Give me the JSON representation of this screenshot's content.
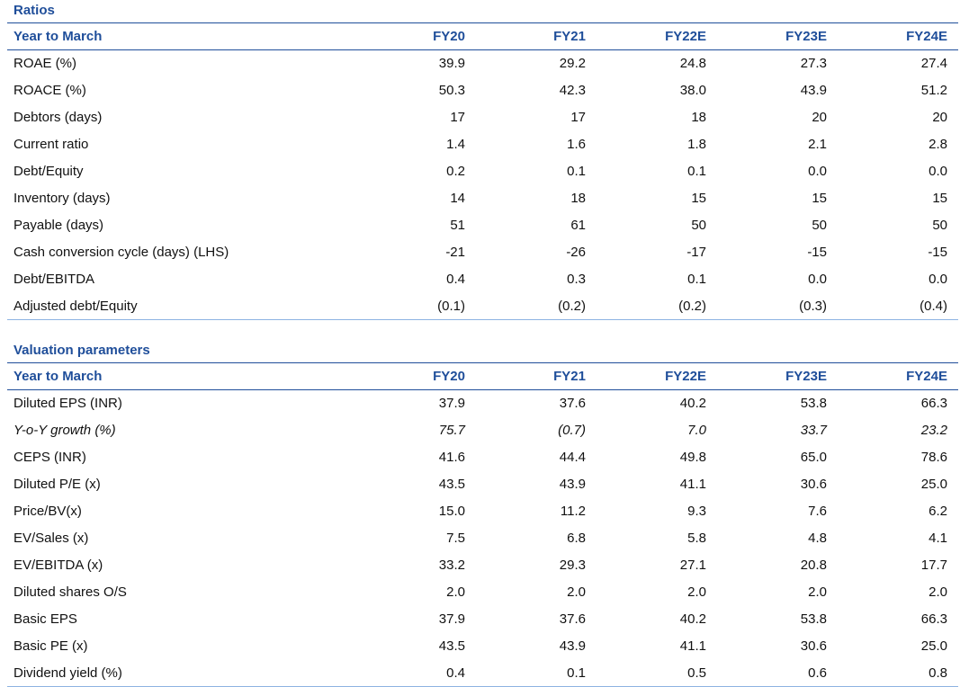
{
  "ratios": {
    "title": "Ratios",
    "header": [
      "Year to March",
      "FY20",
      "FY21",
      "FY22E",
      "FY23E",
      "FY24E"
    ],
    "rows": [
      {
        "label": "ROAE (%)",
        "values": [
          "39.9",
          "29.2",
          "24.8",
          "27.3",
          "27.4"
        ]
      },
      {
        "label": "ROACE (%)",
        "values": [
          "50.3",
          "42.3",
          "38.0",
          "43.9",
          "51.2"
        ]
      },
      {
        "label": "Debtors (days)",
        "values": [
          "17",
          "17",
          "18",
          "20",
          "20"
        ]
      },
      {
        "label": "Current ratio",
        "values": [
          "1.4",
          "1.6",
          "1.8",
          "2.1",
          "2.8"
        ]
      },
      {
        "label": "Debt/Equity",
        "values": [
          "0.2",
          "0.1",
          "0.1",
          "0.0",
          "0.0"
        ]
      },
      {
        "label": "Inventory (days)",
        "values": [
          "14",
          "18",
          "15",
          "15",
          "15"
        ]
      },
      {
        "label": "Payable (days)",
        "values": [
          "51",
          "61",
          "50",
          "50",
          "50"
        ]
      },
      {
        "label": "Cash conversion cycle (days) (LHS)",
        "values": [
          "-21",
          "-26",
          "-17",
          "-15",
          "-15"
        ]
      },
      {
        "label": "Debt/EBITDA",
        "values": [
          "0.4",
          "0.3",
          "0.1",
          "0.0",
          "0.0"
        ]
      },
      {
        "label": "Adjusted debt/Equity",
        "values": [
          "(0.1)",
          "(0.2)",
          "(0.2)",
          "(0.3)",
          "(0.4)"
        ]
      }
    ]
  },
  "valuation": {
    "title": "Valuation parameters",
    "header": [
      "Year to March",
      "FY20",
      "FY21",
      "FY22E",
      "FY23E",
      "FY24E"
    ],
    "rows": [
      {
        "label": "Diluted EPS  (INR)",
        "values": [
          "37.9",
          "37.6",
          "40.2",
          "53.8",
          "66.3"
        ]
      },
      {
        "label": "Y-o-Y growth (%)",
        "values": [
          "75.7",
          "(0.7)",
          "7.0",
          "33.7",
          "23.2"
        ]
      },
      {
        "label": "CEPS (INR)",
        "values": [
          "41.6",
          "44.4",
          "49.8",
          "65.0",
          "78.6"
        ]
      },
      {
        "label": "Diluted P/E (x)",
        "values": [
          "43.5",
          "43.9",
          "41.1",
          "30.6",
          "25.0"
        ]
      },
      {
        "label": "Price/BV(x)",
        "values": [
          "15.0",
          "11.2",
          "9.3",
          "7.6",
          "6.2"
        ]
      },
      {
        "label": "EV/Sales (x)",
        "values": [
          "7.5",
          "6.8",
          "5.8",
          "4.8",
          "4.1"
        ]
      },
      {
        "label": "EV/EBITDA (x)",
        "values": [
          "33.2",
          "29.3",
          "27.1",
          "20.8",
          "17.7"
        ]
      },
      {
        "label": "Diluted shares O/S",
        "values": [
          "2.0",
          "2.0",
          "2.0",
          "2.0",
          "2.0"
        ]
      },
      {
        "label": "Basic EPS",
        "values": [
          "37.9",
          "37.6",
          "40.2",
          "53.8",
          "66.3"
        ]
      },
      {
        "label": "Basic PE (x)",
        "values": [
          "43.5",
          "43.9",
          "41.1",
          "30.6",
          "25.0"
        ]
      },
      {
        "label": "Dividend yield (%)",
        "values": [
          "0.4",
          "0.1",
          "0.5",
          "0.6",
          "0.8"
        ]
      }
    ]
  }
}
